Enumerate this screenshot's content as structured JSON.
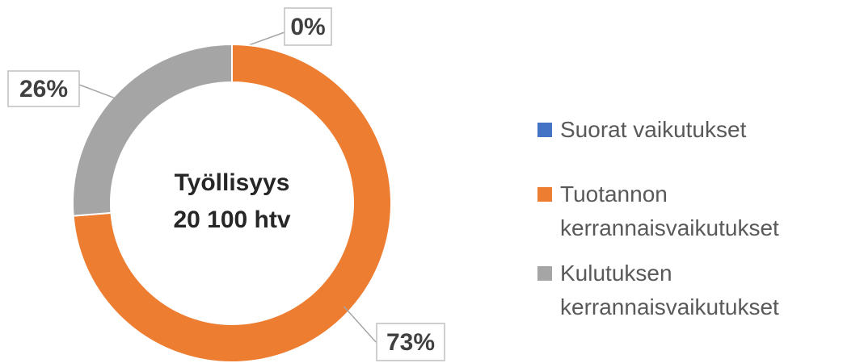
{
  "chart_data": {
    "type": "donut",
    "annotations": [
      "Työllisyys",
      "20 100 htv"
    ],
    "categories": [
      "Suorat vaikutukset",
      "Tuotannon kerrannaisvaikutukset",
      "Kulutuksen kerrannaisvaikutukset"
    ],
    "values": [
      0,
      73,
      26
    ],
    "value_labels": [
      "0%",
      "73%",
      "26%"
    ],
    "colors": [
      "#4472c4",
      "#ed7d31",
      "#a5a5a5"
    ],
    "legend": "right"
  }
}
